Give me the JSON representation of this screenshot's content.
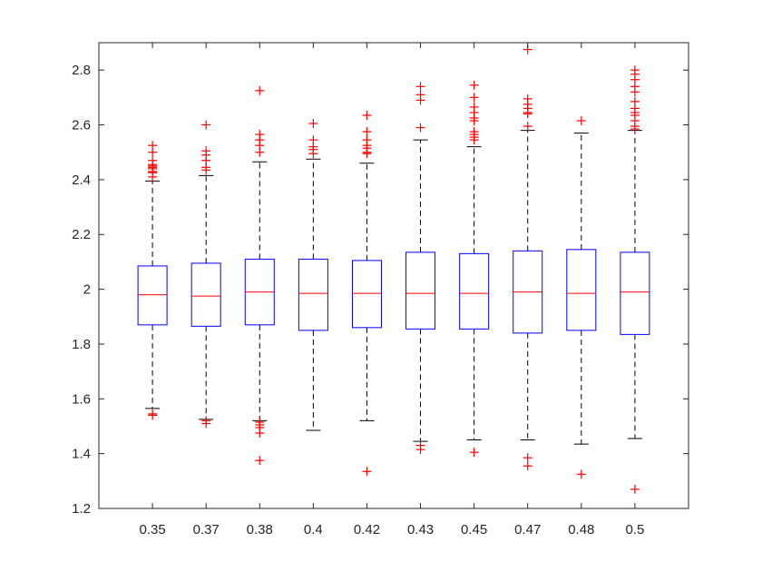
{
  "chart_data": {
    "type": "box",
    "categories": [
      "0.35",
      "0.37",
      "0.38",
      "0.4",
      "0.42",
      "0.43",
      "0.45",
      "0.47",
      "0.48",
      "0.5"
    ],
    "title": "",
    "xlabel": "",
    "ylabel": "",
    "ylim": [
      1.2,
      2.9
    ],
    "yticks": [
      1.2,
      1.4,
      1.6,
      1.8,
      2,
      2.2,
      2.4,
      2.6,
      2.8
    ],
    "ytick_labels": [
      "1.2",
      "1.4",
      "1.6",
      "1.8",
      "2",
      "2.2",
      "2.4",
      "2.6",
      "2.8"
    ],
    "grid": false,
    "colors": {
      "box": "#0000ff",
      "median": "#ff0000",
      "whisker": "#000000",
      "outlier": "#ff0000",
      "axis": "#262626"
    },
    "boxes": [
      {
        "category": "0.35",
        "q1": 1.87,
        "median": 1.98,
        "q3": 2.085,
        "whisker_low": 1.565,
        "whisker_high": 2.395,
        "outliers": [
          1.54,
          1.545,
          2.41,
          2.425,
          2.43,
          2.44,
          2.445,
          2.45,
          2.455,
          2.47,
          2.5,
          2.525
        ]
      },
      {
        "category": "0.37",
        "q1": 1.865,
        "median": 1.975,
        "q3": 2.095,
        "whisker_low": 1.525,
        "whisker_high": 2.415,
        "outliers": [
          1.51,
          1.52,
          2.435,
          2.445,
          2.47,
          2.49,
          2.505,
          2.6
        ]
      },
      {
        "category": "0.38",
        "q1": 1.87,
        "median": 1.99,
        "q3": 2.11,
        "whisker_low": 1.52,
        "whisker_high": 2.465,
        "outliers": [
          1.375,
          1.475,
          1.495,
          1.505,
          1.515,
          2.5,
          2.525,
          2.545,
          2.565,
          2.725
        ]
      },
      {
        "category": "0.4",
        "q1": 1.85,
        "median": 1.985,
        "q3": 2.11,
        "whisker_low": 1.485,
        "whisker_high": 2.475,
        "outliers": [
          2.495,
          2.51,
          2.52,
          2.545,
          2.605
        ]
      },
      {
        "category": "0.42",
        "q1": 1.86,
        "median": 1.985,
        "q3": 2.105,
        "whisker_low": 1.52,
        "whisker_high": 2.46,
        "outliers": [
          1.335,
          2.495,
          2.5,
          2.515,
          2.525,
          2.545,
          2.575,
          2.635
        ]
      },
      {
        "category": "0.43",
        "q1": 1.855,
        "median": 1.985,
        "q3": 2.135,
        "whisker_low": 1.445,
        "whisker_high": 2.545,
        "outliers": [
          1.415,
          1.43,
          2.59,
          2.69,
          2.71,
          2.74
        ]
      },
      {
        "category": "0.45",
        "q1": 1.855,
        "median": 1.985,
        "q3": 2.13,
        "whisker_low": 1.45,
        "whisker_high": 2.52,
        "outliers": [
          1.405,
          2.545,
          2.555,
          2.565,
          2.575,
          2.615,
          2.625,
          2.645,
          2.665,
          2.7,
          2.745
        ]
      },
      {
        "category": "0.47",
        "q1": 1.84,
        "median": 1.99,
        "q3": 2.14,
        "whisker_low": 1.45,
        "whisker_high": 2.58,
        "outliers": [
          1.355,
          1.385,
          2.595,
          2.64,
          2.645,
          2.66,
          2.675,
          2.695,
          2.875
        ]
      },
      {
        "category": "0.48",
        "q1": 1.85,
        "median": 1.985,
        "q3": 2.145,
        "whisker_low": 1.435,
        "whisker_high": 2.57,
        "outliers": [
          1.325,
          2.615
        ]
      },
      {
        "category": "0.5",
        "q1": 1.835,
        "median": 1.99,
        "q3": 2.135,
        "whisker_low": 1.455,
        "whisker_high": 2.58,
        "outliers": [
          1.27,
          2.585,
          2.595,
          2.615,
          2.635,
          2.645,
          2.66,
          2.685,
          2.72,
          2.74,
          2.765,
          2.785,
          2.8
        ]
      }
    ]
  }
}
